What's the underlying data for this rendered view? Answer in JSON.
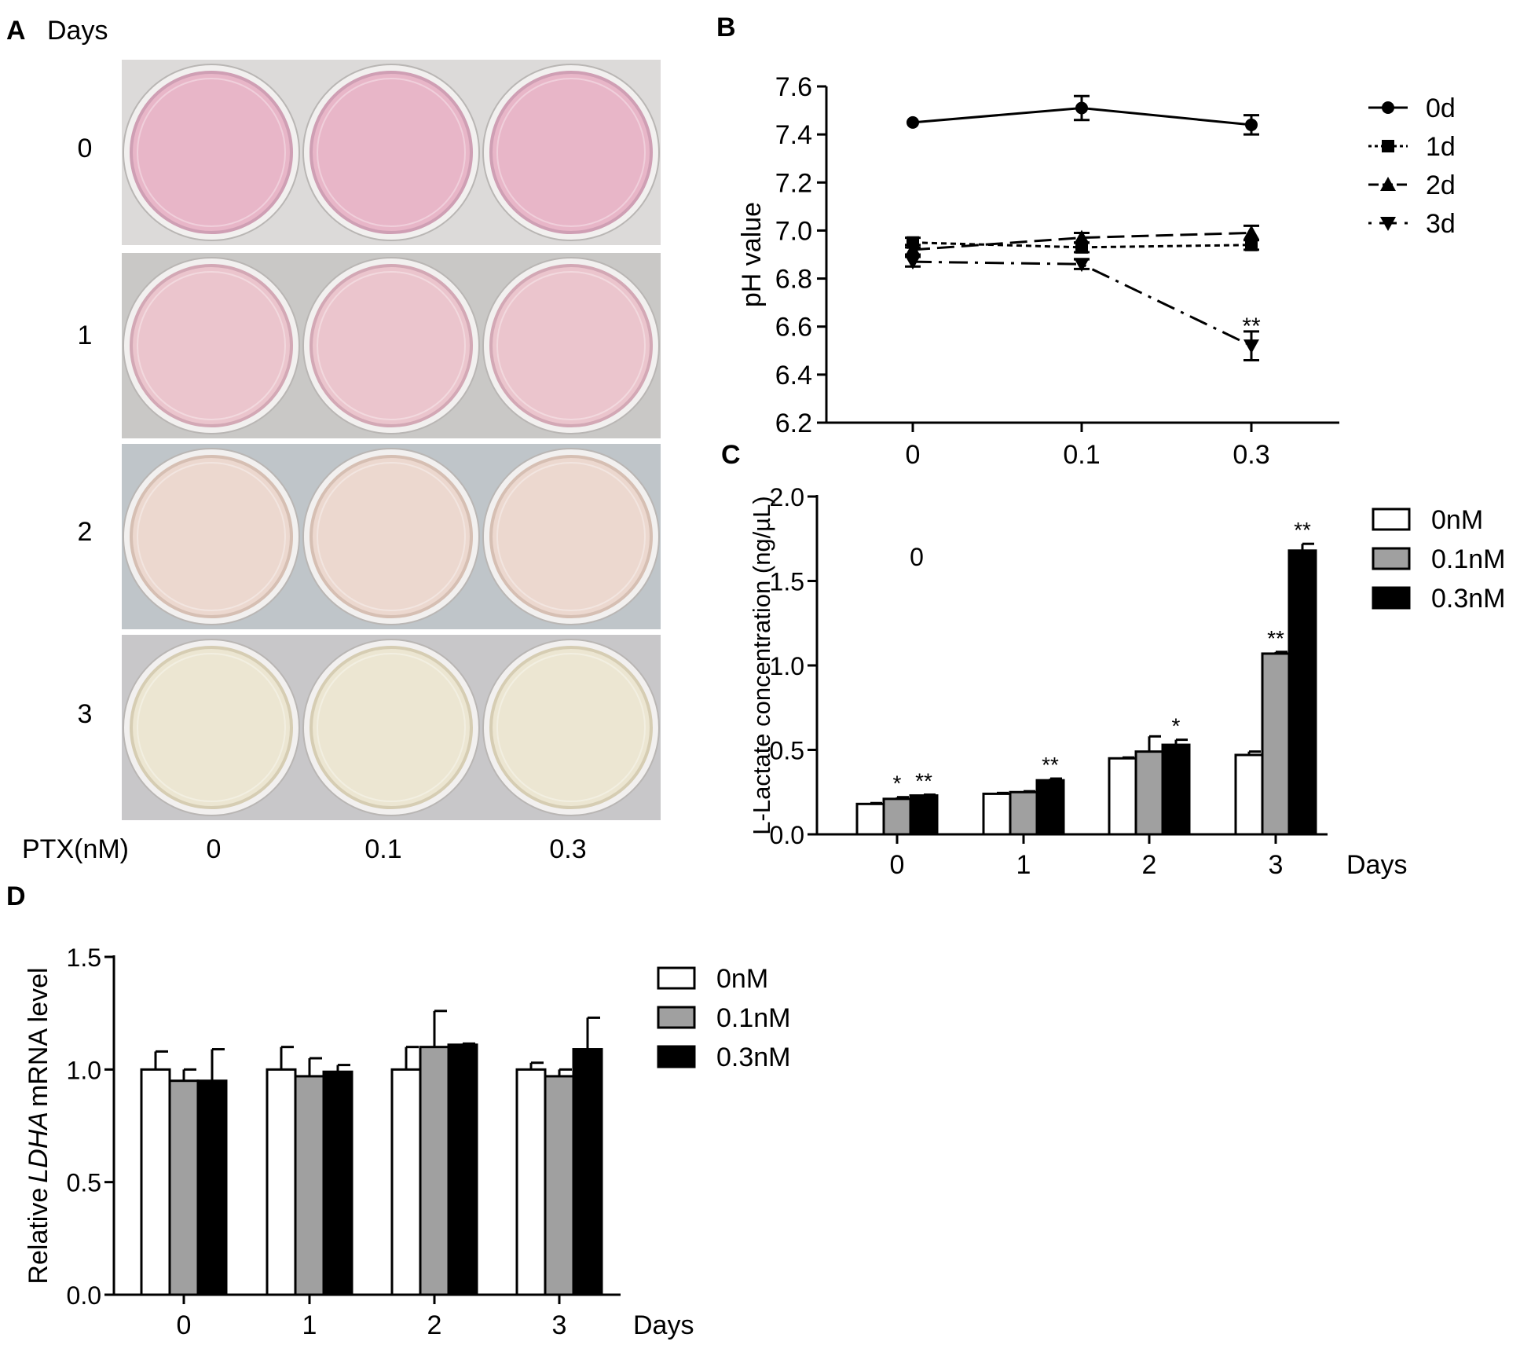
{
  "panel_a": {
    "label": "A",
    "rows_title": "Days",
    "rows": [
      {
        "day": "0",
        "bg": "#dcdad9",
        "fill": "#e8b6c8",
        "rim": "#cf9fb4"
      },
      {
        "day": "1",
        "bg": "#c9c8c6",
        "fill": "#ebc5cd",
        "rim": "#d3a8b5"
      },
      {
        "day": "2",
        "bg": "#bfc5c9",
        "fill": "#ecd8cf",
        "rim": "#d6bfb3"
      },
      {
        "day": "3",
        "bg": "#c8c7c9",
        "fill": "#ece6d2",
        "rim": "#d6cdb3"
      }
    ],
    "col_title": "PTX(nM)",
    "cols": [
      "0",
      "0.1",
      "0.3"
    ]
  },
  "chart_data": [
    {
      "panel": "B",
      "type": "line",
      "ylabel": "pH value",
      "xlabel": "",
      "categories": [
        "0",
        "0.1",
        "0.3"
      ],
      "ylim": [
        6.2,
        7.6
      ],
      "yticks": [
        "6.2",
        "6.4",
        "6.6",
        "6.8",
        "7.0",
        "7.2",
        "7.4",
        "7.6"
      ],
      "series": [
        {
          "name": "0d",
          "marker": "circle",
          "dash": "",
          "values": [
            7.45,
            7.51,
            7.44
          ],
          "err": [
            0.0,
            0.05,
            0.04
          ]
        },
        {
          "name": "1d",
          "marker": "square",
          "dash": "7,5",
          "values": [
            6.95,
            6.93,
            6.94
          ],
          "err": [
            0.02,
            0.02,
            0.02
          ]
        },
        {
          "name": "2d",
          "marker": "triangle-up",
          "dash": "22,9",
          "values": [
            6.92,
            6.97,
            6.99
          ],
          "err": [
            0.02,
            0.02,
            0.03
          ]
        },
        {
          "name": "3d",
          "marker": "triangle-down",
          "dash": "24,9,4,9",
          "values": [
            6.87,
            6.86,
            6.52
          ],
          "err": [
            0.02,
            0.02,
            0.06
          ]
        }
      ],
      "annotations": [
        {
          "text": "**",
          "category": "0.3",
          "y": 6.59
        }
      ]
    },
    {
      "panel": "C",
      "type": "bar",
      "ylabel": "L-Lactate concentration (ng/µL)",
      "xlabel": "Days",
      "categories": [
        "0",
        "1",
        "2",
        "3"
      ],
      "ylim": [
        0.0,
        2.0
      ],
      "yticks": [
        "0.0",
        "0.5",
        "1.0",
        "1.5",
        "2.0"
      ],
      "inner_text": "0",
      "series": [
        {
          "name": "0nM",
          "color": "#ffffff",
          "values": [
            0.18,
            0.24,
            0.45,
            0.47
          ],
          "err": [
            0.005,
            0.005,
            0.005,
            0.02
          ],
          "stars": [
            "",
            "",
            "",
            ""
          ]
        },
        {
          "name": "0.1nM",
          "color": "#a0a0a0",
          "values": [
            0.21,
            0.25,
            0.49,
            1.07
          ],
          "err": [
            0.01,
            0.005,
            0.09,
            0.01
          ],
          "stars": [
            "*",
            "",
            "",
            "**"
          ]
        },
        {
          "name": "0.3nM",
          "color": "#000000",
          "values": [
            0.23,
            0.32,
            0.53,
            1.68
          ],
          "err": [
            0.005,
            0.01,
            0.03,
            0.04
          ],
          "stars": [
            "**",
            "**",
            "*",
            "**"
          ]
        }
      ]
    },
    {
      "panel": "D",
      "type": "bar",
      "ylabel_prefix": "Relative",
      "ylabel_italic": "LDHA",
      "ylabel_suffix": "mRNA level",
      "xlabel": "Days",
      "categories": [
        "0",
        "1",
        "2",
        "3"
      ],
      "ylim": [
        0.0,
        1.5
      ],
      "yticks": [
        "0.0",
        "0.5",
        "1.0",
        "1.5"
      ],
      "series": [
        {
          "name": "0nM",
          "color": "#ffffff",
          "values": [
            1.0,
            1.0,
            1.0,
            1.0
          ],
          "err": [
            0.08,
            0.1,
            0.1,
            0.03
          ]
        },
        {
          "name": "0.1nM",
          "color": "#a0a0a0",
          "values": [
            0.95,
            0.97,
            1.1,
            0.97
          ],
          "err": [
            0.05,
            0.08,
            0.16,
            0.03
          ]
        },
        {
          "name": "0.3nM",
          "color": "#000000",
          "values": [
            0.95,
            0.99,
            1.11,
            1.09
          ],
          "err": [
            0.14,
            0.03,
            0.005,
            0.14
          ]
        }
      ]
    }
  ]
}
